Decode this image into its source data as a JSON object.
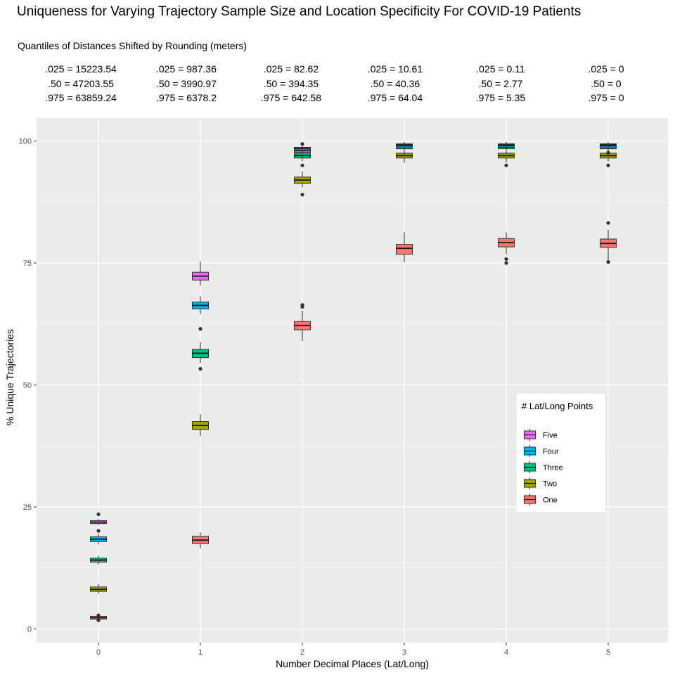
{
  "chart_data": {
    "type": "box",
    "title": "Uniqueness for Varying Trajectory Sample Size and Location Specificity For COVID-19 Patients",
    "subtitle": "Quantiles of Distances Shifted by Rounding (meters)",
    "quantile_annotations": [
      {
        "x": 0,
        "q025": ".025 = 15223.54",
        "q50": ".50 = 47203.55",
        "q975": ".975 = 63859.24"
      },
      {
        "x": 1,
        "q025": ".025 = 987.36",
        "q50": ".50 = 3990.97",
        "q975": ".975 = 6378.2"
      },
      {
        "x": 2,
        "q025": ".025 = 82.62",
        "q50": ".50 = 394.35",
        "q975": ".975 = 642.58"
      },
      {
        "x": 3,
        "q025": ".025 = 10.61",
        "q50": ".50 = 40.36",
        "q975": ".975 = 64.04"
      },
      {
        "x": 4,
        "q025": ".025 = 0.11",
        "q50": ".50 = 2.77",
        "q975": ".975 = 5.35"
      },
      {
        "x": 5,
        "q025": ".025 = 0",
        "q50": ".50 = 0",
        "q975": ".975 = 0"
      }
    ],
    "xlabel": "Number Decimal Places (Lat/Long)",
    "ylabel": "% Unique Trajectories",
    "x_categories": [
      "0",
      "1",
      "2",
      "3",
      "4",
      "5"
    ],
    "yticks": [
      "0",
      "25",
      "50",
      "75",
      "100"
    ],
    "ylim": [
      -2.5,
      104
    ],
    "grid": true,
    "legend": {
      "title": "# Lat/Long Points",
      "position": "right-inside",
      "entries": [
        "Five",
        "Four",
        "Three",
        "Two",
        "One"
      ]
    },
    "series": [
      {
        "name": "One",
        "color": "#F8766D",
        "boxes": [
          {
            "x": 0,
            "min": 2.0,
            "q1": 2.0,
            "median": 2.3,
            "q3": 2.6,
            "max": 2.9,
            "outliers": [
              1.8,
              2.8
            ]
          },
          {
            "x": 1,
            "min": 16.5,
            "q1": 17.5,
            "median": 18.2,
            "q3": 19.0,
            "max": 19.8,
            "outliers": []
          },
          {
            "x": 2,
            "min": 59.0,
            "q1": 61.3,
            "median": 62.2,
            "q3": 63.0,
            "max": 65.2,
            "outliers": [
              66.0,
              66.4
            ]
          },
          {
            "x": 3,
            "min": 75.2,
            "q1": 76.8,
            "median": 78.0,
            "q3": 78.8,
            "max": 81.3,
            "outliers": []
          },
          {
            "x": 4,
            "min": 76.8,
            "q1": 78.3,
            "median": 79.2,
            "q3": 80.0,
            "max": 81.3,
            "outliers": [
              75.0,
              75.8
            ]
          },
          {
            "x": 5,
            "min": 75.5,
            "q1": 78.2,
            "median": 79.0,
            "q3": 79.9,
            "max": 81.8,
            "outliers": [
              75.2,
              83.2
            ]
          }
        ]
      },
      {
        "name": "Two",
        "color": "#A3A500",
        "boxes": [
          {
            "x": 0,
            "min": 7.2,
            "q1": 7.7,
            "median": 8.1,
            "q3": 8.6,
            "max": 9.2,
            "outliers": []
          },
          {
            "x": 1,
            "min": 39.5,
            "q1": 40.9,
            "median": 41.7,
            "q3": 42.5,
            "max": 44.0,
            "outliers": []
          },
          {
            "x": 2,
            "min": 90.5,
            "q1": 91.3,
            "median": 92.0,
            "q3": 92.6,
            "max": 93.8,
            "outliers": [
              89.0
            ]
          },
          {
            "x": 3,
            "min": 95.5,
            "q1": 96.5,
            "median": 97.0,
            "q3": 97.5,
            "max": 98.2,
            "outliers": []
          },
          {
            "x": 4,
            "min": 95.6,
            "q1": 96.5,
            "median": 97.0,
            "q3": 97.5,
            "max": 98.2,
            "outliers": [
              95.0
            ]
          },
          {
            "x": 5,
            "min": 95.8,
            "q1": 96.5,
            "median": 97.0,
            "q3": 97.5,
            "max": 98.2,
            "outliers": [
              95.0
            ]
          }
        ]
      },
      {
        "name": "Three",
        "color": "#00BF7D",
        "boxes": [
          {
            "x": 0,
            "min": 13.2,
            "q1": 13.7,
            "median": 14.1,
            "q3": 14.5,
            "max": 15.0,
            "outliers": []
          },
          {
            "x": 1,
            "min": 54.5,
            "q1": 55.6,
            "median": 56.5,
            "q3": 57.3,
            "max": 58.8,
            "outliers": [
              53.3,
              61.5
            ]
          },
          {
            "x": 2,
            "min": 95.8,
            "q1": 96.5,
            "median": 97.0,
            "q3": 97.5,
            "max": 98.0,
            "outliers": [
              95.0
            ]
          },
          {
            "x": 3,
            "min": 97.2,
            "q1": 98.4,
            "median": 98.8,
            "q3": 99.3,
            "max": 99.7,
            "outliers": []
          },
          {
            "x": 4,
            "min": 97.6,
            "q1": 98.4,
            "median": 98.8,
            "q3": 99.3,
            "max": 99.7,
            "outliers": []
          },
          {
            "x": 5,
            "min": 97.4,
            "q1": 98.4,
            "median": 98.8,
            "q3": 99.3,
            "max": 99.7,
            "outliers": []
          }
        ]
      },
      {
        "name": "Four",
        "color": "#00B0F6",
        "boxes": [
          {
            "x": 0,
            "min": 17.3,
            "q1": 17.9,
            "median": 18.4,
            "q3": 18.9,
            "max": 19.5,
            "outliers": [
              20.1
            ]
          },
          {
            "x": 1,
            "min": 64.5,
            "q1": 65.6,
            "median": 66.3,
            "q3": 67.0,
            "max": 68.2,
            "outliers": []
          },
          {
            "x": 2,
            "min": 97.4,
            "q1": 97.7,
            "median": 98.1,
            "q3": 98.5,
            "max": 98.9,
            "outliers": [
              99.4
            ]
          },
          {
            "x": 3,
            "min": 98.2,
            "q1": 98.6,
            "median": 99.0,
            "q3": 99.4,
            "max": 99.8,
            "outliers": []
          },
          {
            "x": 4,
            "min": 98.3,
            "q1": 98.7,
            "median": 99.0,
            "q3": 99.4,
            "max": 99.8,
            "outliers": []
          },
          {
            "x": 5,
            "min": 98.2,
            "q1": 98.6,
            "median": 99.0,
            "q3": 99.4,
            "max": 99.8,
            "outliers": [
              97.6
            ]
          }
        ]
      },
      {
        "name": "Five",
        "color": "#E76BF3",
        "boxes": [
          {
            "x": 0,
            "min": 21.3,
            "q1": 21.6,
            "median": 21.9,
            "q3": 22.2,
            "max": 22.5,
            "outliers": [
              23.5
            ]
          },
          {
            "x": 1,
            "min": 70.4,
            "q1": 71.5,
            "median": 72.3,
            "q3": 73.1,
            "max": 75.3,
            "outliers": []
          },
          {
            "x": 2,
            "min": 97.8,
            "q1": 98.2,
            "median": 98.5,
            "q3": 98.7,
            "max": 99.0,
            "outliers": []
          },
          {
            "x": 3,
            "min": 98.8,
            "q1": 99.0,
            "median": 99.2,
            "q3": 99.4,
            "max": 99.6,
            "outliers": []
          },
          {
            "x": 4,
            "min": 98.8,
            "q1": 99.0,
            "median": 99.2,
            "q3": 99.4,
            "max": 99.6,
            "outliers": []
          },
          {
            "x": 5,
            "min": 98.8,
            "q1": 99.0,
            "median": 99.2,
            "q3": 99.4,
            "max": 99.6,
            "outliers": []
          }
        ]
      }
    ],
    "colors": {
      "panel_bg": "#EBEBEB",
      "grid": "#FFFFFF",
      "outlier": "#333333"
    }
  }
}
